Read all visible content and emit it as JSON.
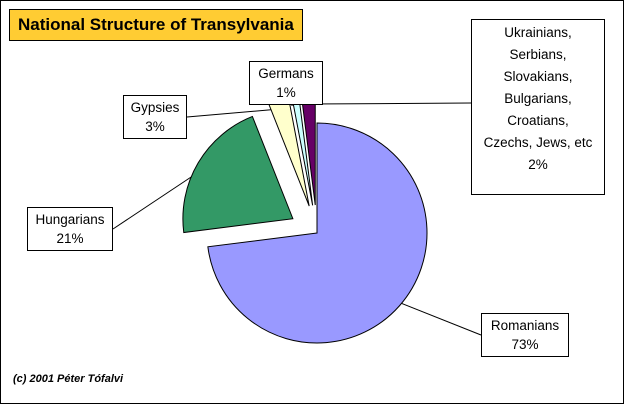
{
  "chart_data": {
    "type": "pie",
    "title": "National Structure of Transylvania",
    "slices": [
      {
        "name": "Romanians",
        "label": "Romanians",
        "value": 73,
        "value_label": "73%",
        "color": "#9999ff",
        "exploded": false
      },
      {
        "name": "Hungarians",
        "label": "Hungarians",
        "value": 21,
        "value_label": "21%",
        "color": "#339966",
        "exploded": true
      },
      {
        "name": "Gypsies",
        "label": "Gypsies",
        "value": 3,
        "value_label": "3%",
        "color": "#ffffcc",
        "exploded": true
      },
      {
        "name": "Germans",
        "label": "Germans",
        "value": 1,
        "value_label": "1%",
        "color": "#ccffff",
        "exploded": true
      },
      {
        "name": "Others",
        "label_lines": [
          "Ukrainians,",
          "Serbians,",
          "Slovakians,",
          "Bulgarians,",
          "Croatians,",
          "Czechs, Jews, etc"
        ],
        "value": 2,
        "value_label": "2%",
        "color": "#660066",
        "exploded": true
      }
    ],
    "legend": "none"
  },
  "footer": {
    "copyright": "(c) 2001  Péter Tófalvi"
  }
}
